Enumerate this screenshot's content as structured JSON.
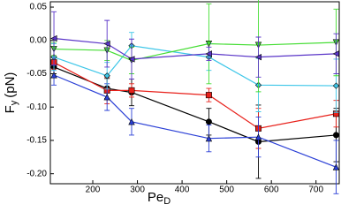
{
  "chart_data": {
    "type": "line",
    "x_label": {
      "main": "Pe",
      "sub": "D"
    },
    "y_label": {
      "main": "F",
      "sub": "y",
      "unit": "(pN)"
    },
    "x": [
      113,
      232,
      287,
      460,
      571,
      745
    ],
    "xlim": [
      105,
      752
    ],
    "xticks": [
      200,
      300,
      400,
      500,
      600,
      700
    ],
    "ylim": [
      -0.215,
      0.058
    ],
    "yticks": [
      0.05,
      {
        "value": 0,
        "label": "0.00"
      },
      -0.05,
      {
        "value": -0.1,
        "label": "-0.10"
      },
      -0.15,
      {
        "value": -0.2,
        "label": "-0.20"
      }
    ],
    "grid": false,
    "series": [
      {
        "color": "#000000",
        "marker": "circle",
        "values": [
          -0.04,
          -0.072,
          -0.078,
          -0.122,
          -0.152,
          -0.142
        ],
        "errors": [
          0.01,
          0.015,
          0.02,
          0.02,
          0.055,
          0.04
        ]
      },
      {
        "color": "#e8201a",
        "marker": "square",
        "values": [
          -0.033,
          -0.075,
          -0.075,
          -0.082,
          -0.132,
          -0.11
        ],
        "errors": [
          0.01,
          0.02,
          0.01,
          0.01,
          0.03,
          0.02
        ]
      },
      {
        "color": "#2a3fd6",
        "marker": "up",
        "values": [
          -0.052,
          -0.085,
          -0.122,
          -0.147,
          -0.145,
          -0.19
        ],
        "errors": [
          0.015,
          0.02,
          0.02,
          0.02,
          0.03,
          0.04
        ]
      },
      {
        "color": "#3cc6e8",
        "marker": "diamond",
        "values": [
          -0.025,
          -0.053,
          -0.008,
          -0.025,
          -0.067,
          -0.068
        ],
        "errors": [
          0.02,
          0.02,
          0.02,
          0.02,
          0.04,
          0.04
        ]
      },
      {
        "color": "#44dd33",
        "marker": "down",
        "values": [
          -0.013,
          -0.015,
          -0.03,
          -0.005,
          -0.007,
          -0.003
        ],
        "errors": [
          0.01,
          0.015,
          0.02,
          0.06,
          0.07,
          0.05
        ]
      },
      {
        "color": "#5a35c8",
        "marker": "left",
        "values": [
          0.003,
          -0.005,
          -0.028,
          -0.02,
          -0.025,
          -0.02
        ],
        "errors": [
          0.04,
          0.035,
          0.03,
          0.01,
          0.03,
          0.03
        ]
      }
    ]
  }
}
